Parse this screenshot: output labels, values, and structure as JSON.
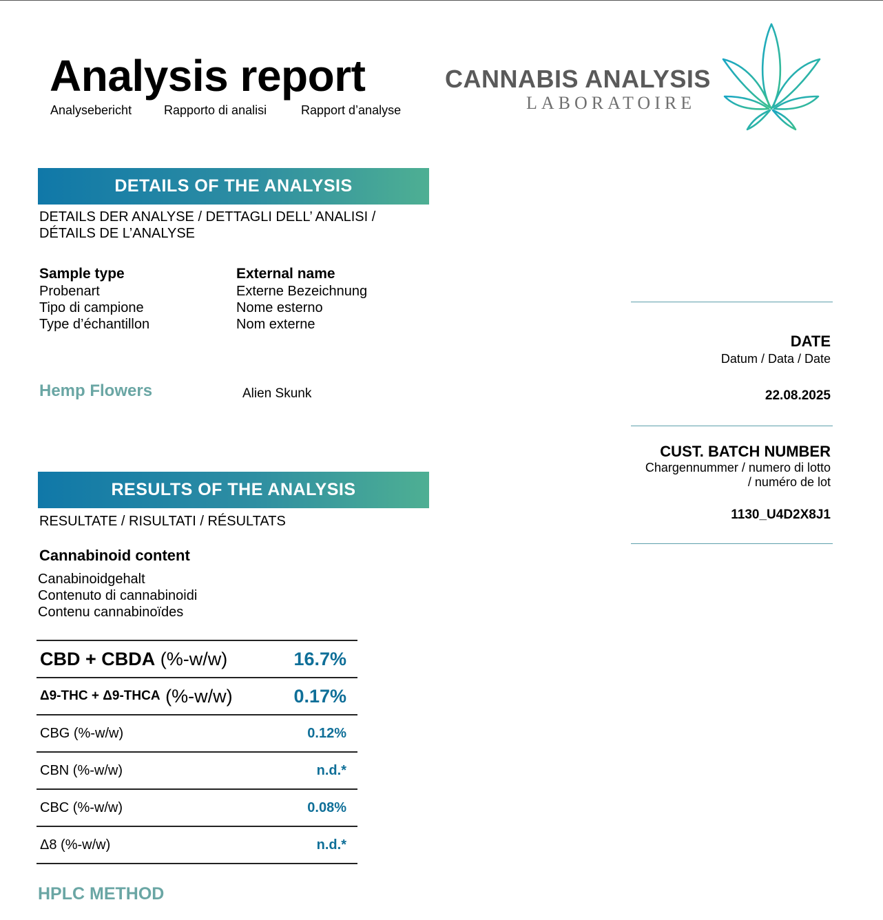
{
  "header": {
    "title": "Analysis report",
    "subtitles": [
      "Analysebericht",
      "Rapporto di analisi",
      "Rapport d’analyse"
    ]
  },
  "logo": {
    "name": "CANNABIS ANALYSIS",
    "sub": "LABORATOIRE",
    "icon": "cannabis-leaf-icon",
    "colors": [
      "#1aa6c4",
      "#3bbf8f"
    ]
  },
  "details": {
    "banner": "DETAILS OF THE ANALYSIS",
    "subtitle_lines": [
      "DETAILS DER ANALYSE / DETTAGLI DELL’ ANALISI /",
      "DÉTAILS DE L’ANALYSE"
    ],
    "sample_type": {
      "heading": "Sample type",
      "translations": [
        "Probenart",
        "Tipo di campione",
        "Type d’échantillon"
      ],
      "value": "Hemp Flowers"
    },
    "external_name": {
      "heading": "External name",
      "translations": [
        "Externe Bezeichnung",
        "Nome esterno",
        "Nom externe"
      ],
      "value": "Alien Skunk"
    }
  },
  "side": {
    "date": {
      "heading": "DATE",
      "sub": "Datum / Data / Date",
      "value": "22.08.2025"
    },
    "batch": {
      "heading": "CUST. BATCH NUMBER",
      "sub_lines": [
        "Chargennummer / numero di lotto",
        "/ numéro de lot"
      ],
      "value": "1130_U4D2X8J1"
    }
  },
  "results": {
    "banner": "RESULTS OF THE ANALYSIS",
    "subtitle": "RESULTATE / RISULTATI / RÉSULTATS",
    "cannabinoid": {
      "heading": "Cannabinoid content",
      "translations": [
        "Canabinoidgehalt",
        "Contenuto di cannabinoidi",
        "Contenu cannabinoïdes"
      ]
    },
    "rows": [
      {
        "label_bold": "CBD + CBDA",
        "unit": "(%-w/w)",
        "value": "16.7%"
      },
      {
        "label_bold": "Δ9-THC + Δ9-THCA",
        "unit": "(%-w/w)",
        "value": "0.17%"
      },
      {
        "label": "CBG (%-w/w)",
        "value": "0.12%"
      },
      {
        "label": "CBN (%-w/w)",
        "value": "n.d.*"
      },
      {
        "label": "CBC (%-w/w)",
        "value": "0.08%"
      },
      {
        "label": "Δ8 (%-w/w)",
        "value": "n.d.*"
      }
    ],
    "method": "HPLC METHOD",
    "value_color": "#0f6f98",
    "accent_color": "#6aa6a4"
  }
}
